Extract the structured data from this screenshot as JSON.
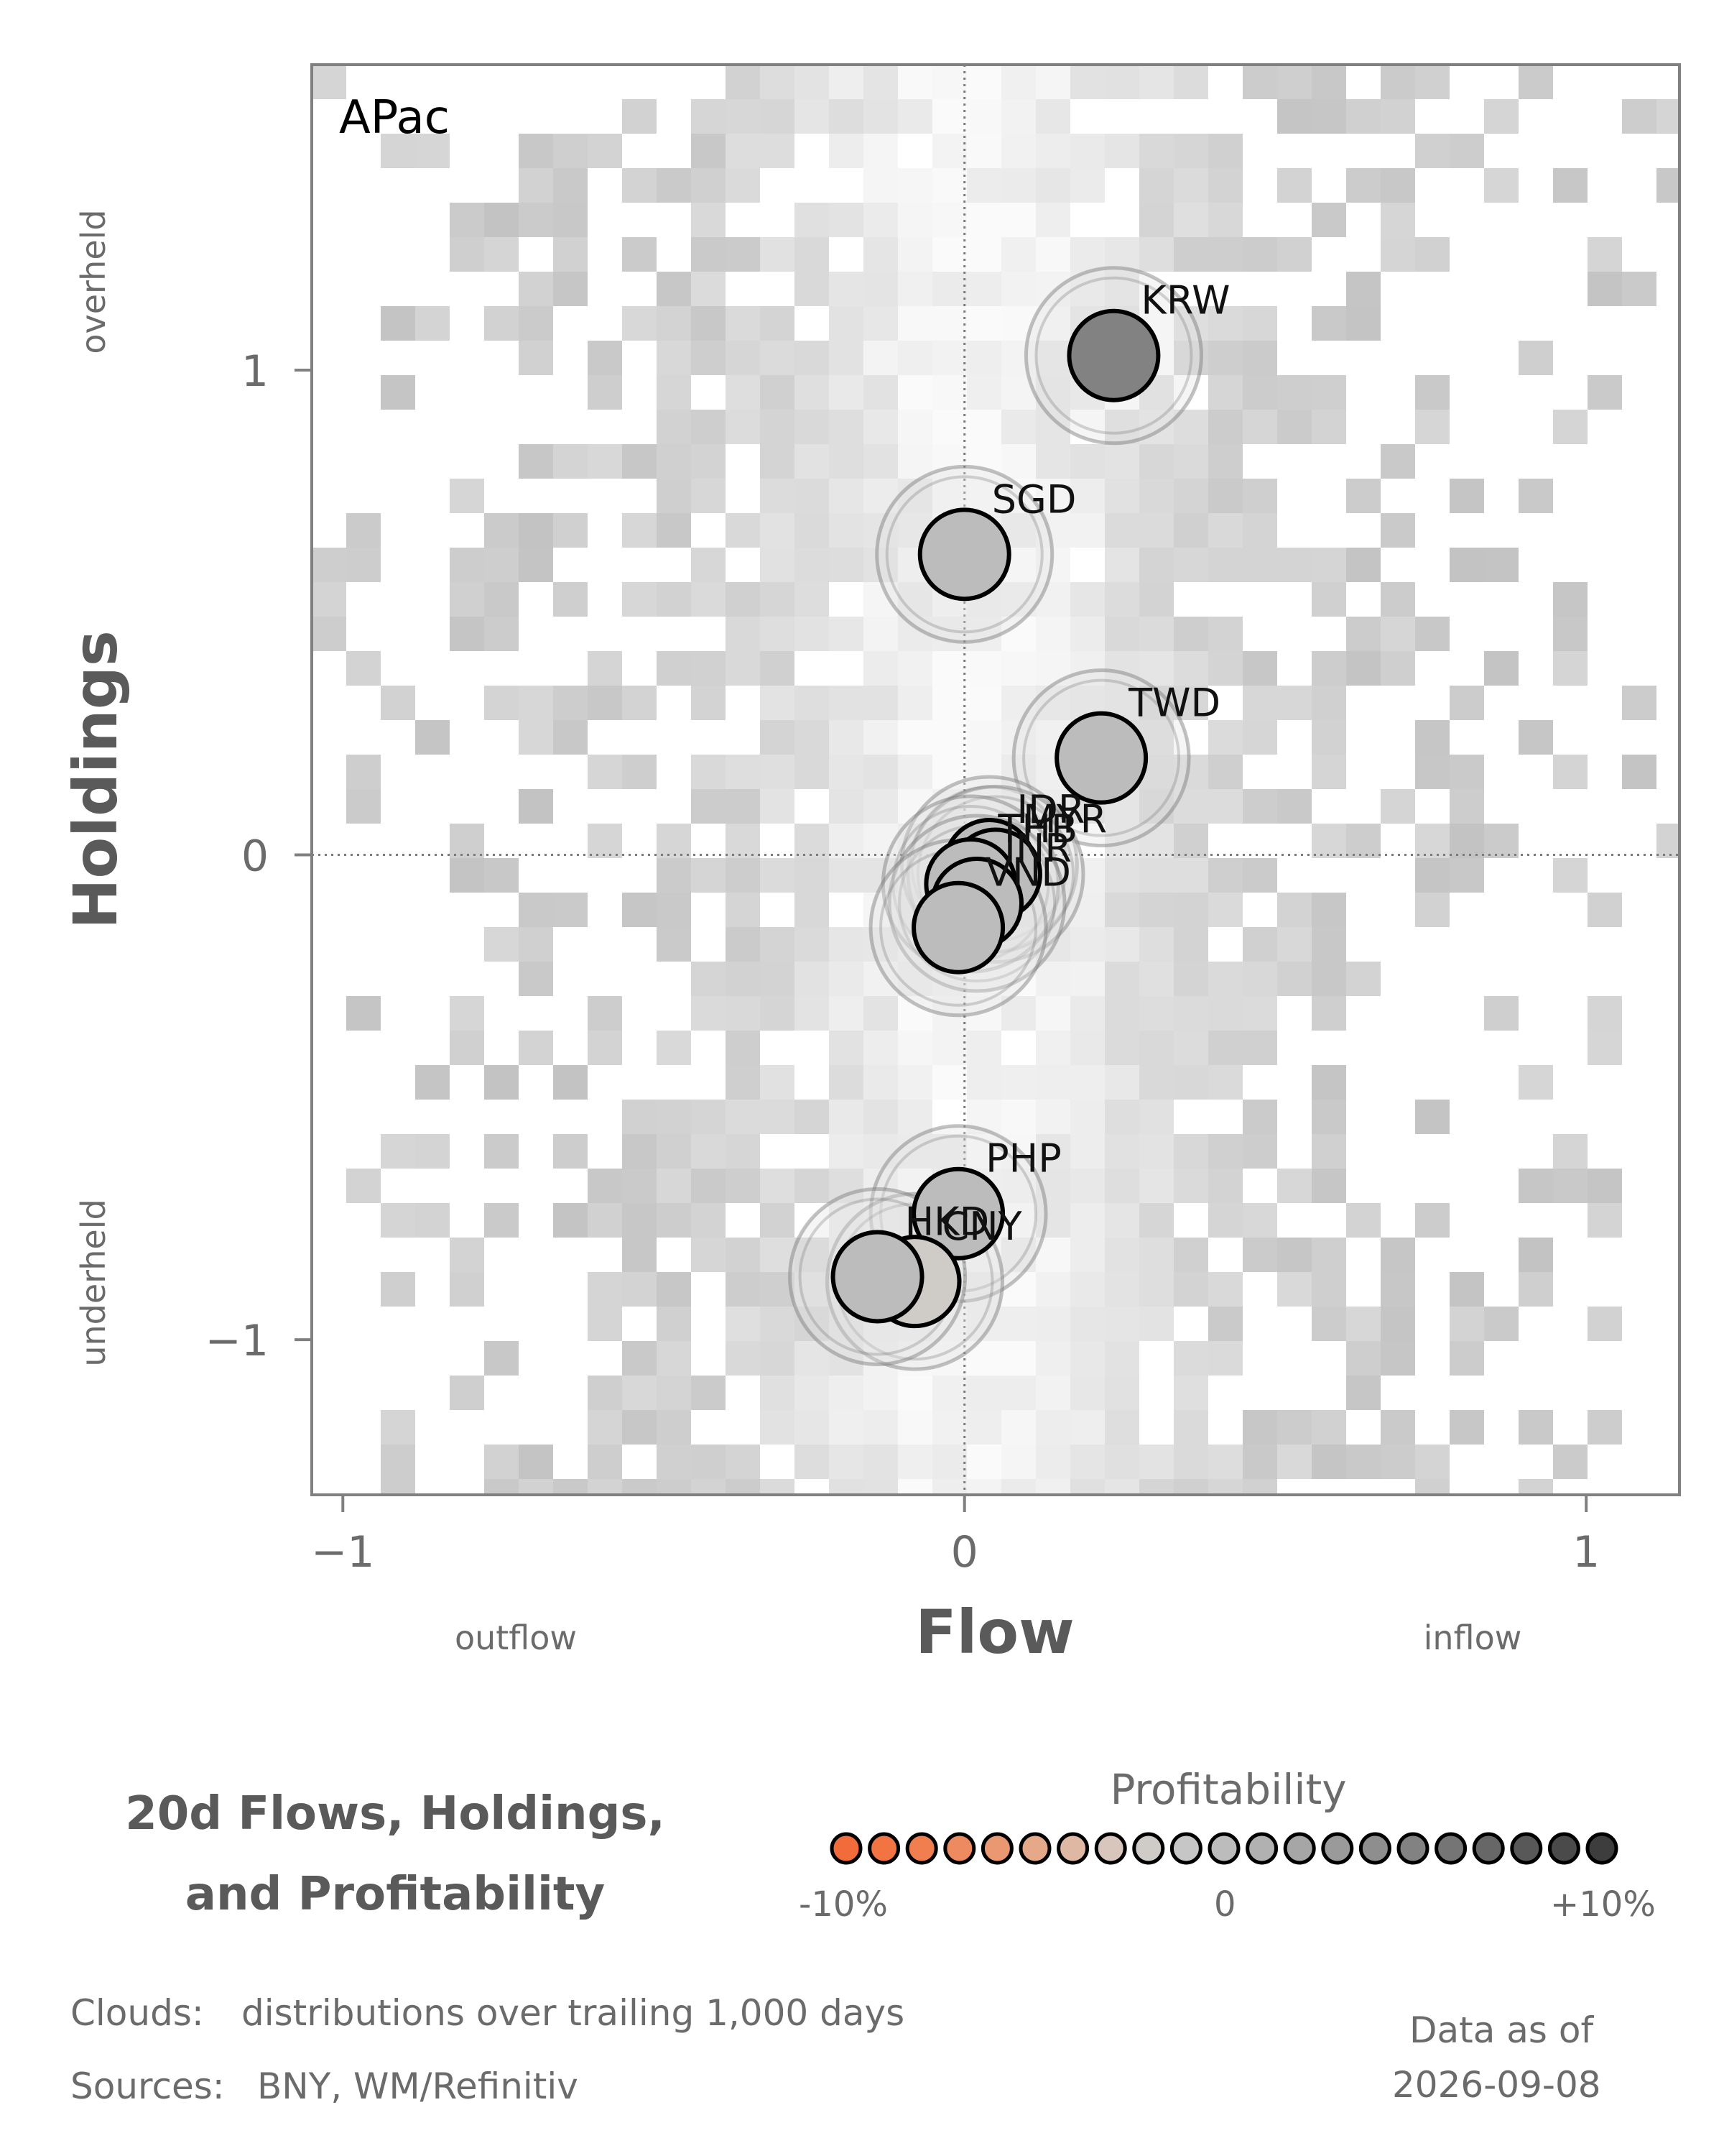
{
  "chart_data": {
    "type": "scatter",
    "panel_label": "APac",
    "xlabel": "Flow",
    "ylabel": "Holdings",
    "x_side_labels": {
      "left": "outflow",
      "right": "inflow"
    },
    "y_side_labels": {
      "top": "overheld",
      "bottom": "underheld"
    },
    "xlim": [
      -1.05,
      1.15
    ],
    "ylim": [
      -1.32,
      1.63
    ],
    "xticks": [
      {
        "value": -1,
        "label": "−1"
      },
      {
        "value": 0,
        "label": "0"
      },
      {
        "value": 1,
        "label": "1"
      }
    ],
    "yticks": [
      {
        "value": 1,
        "label": "1"
      },
      {
        "value": 0,
        "label": "0"
      },
      {
        "value": -1,
        "label": "−1"
      }
    ],
    "reference_lines": {
      "x": 0,
      "y": 0,
      "style": "dotted"
    },
    "background": "grey 2D histogram clouds of historical flow/holdings distributions",
    "points": [
      {
        "name": "KRW",
        "x": 0.24,
        "y": 1.03,
        "profitability": 0.05
      },
      {
        "name": "SGD",
        "x": 0.0,
        "y": 0.62,
        "profitability": 0.0
      },
      {
        "name": "TWD",
        "x": 0.22,
        "y": 0.2,
        "profitability": 0.0
      },
      {
        "name": "IDR",
        "x": 0.04,
        "y": -0.02,
        "profitability": 0.0
      },
      {
        "name": "MYR",
        "x": 0.05,
        "y": -0.04,
        "profitability": 0.0
      },
      {
        "name": "THB",
        "x": 0.01,
        "y": -0.06,
        "profitability": 0.0
      },
      {
        "name": "INR",
        "x": 0.02,
        "y": -0.1,
        "profitability": 0.0
      },
      {
        "name": "VND",
        "x": -0.01,
        "y": -0.15,
        "profitability": 0.0
      },
      {
        "name": "PHP",
        "x": -0.01,
        "y": -0.74,
        "profitability": 0.0
      },
      {
        "name": "CNY",
        "x": -0.08,
        "y": -0.88,
        "profitability": -0.02
      },
      {
        "name": "HKD",
        "x": -0.14,
        "y": -0.87,
        "profitability": 0.0
      }
    ]
  },
  "title": "20d Flows, Holdings, and Profitability",
  "legend": {
    "title": "Profitability",
    "tick_min": "-10%",
    "tick_mid": "0",
    "tick_max": "+10%",
    "colors": [
      "#f26b3a",
      "#f27443",
      "#f07e4f",
      "#ee8a5f",
      "#ea9872",
      "#e5a98a",
      "#dfb8a4",
      "#d8c6bc",
      "#cfcbc7",
      "#c6c6c6",
      "#bcbcbc",
      "#b1b1b1",
      "#a6a6a6",
      "#9a9a9a",
      "#8e8e8e",
      "#828282",
      "#757575",
      "#676767",
      "#585858",
      "#4a4a4a",
      "#3d3d3d"
    ]
  },
  "footer": {
    "clouds_label": "Clouds:",
    "clouds_text": "distributions over trailing 1,000 days",
    "sources_label": "Sources:",
    "sources_text": "BNY, WM/Refinitiv",
    "asof_label": "Data as of",
    "asof_date": "2026-09-08"
  },
  "colors": {
    "frame": "#808080",
    "marker_stroke": "#000000",
    "halo": "#9a9a9a",
    "cloud": "#b0b0b0"
  }
}
